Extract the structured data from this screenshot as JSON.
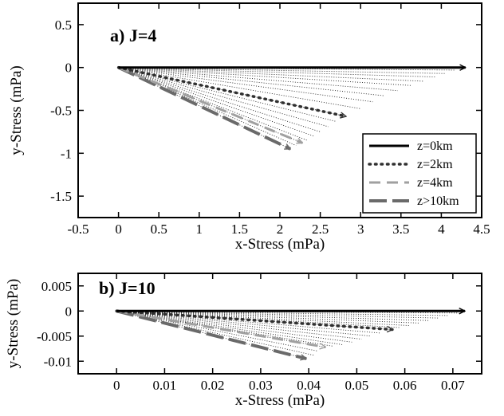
{
  "chart_data": [
    {
      "type": "line",
      "panel_label": "a) J=4",
      "xlabel": "x-Stress (mPa)",
      "ylabel": "y-Stress (mPa)",
      "xlim": [
        -0.5,
        4.5
      ],
      "ylim": [
        -1.75,
        0.75
      ],
      "xticks": [
        "-0.5",
        "0",
        "0.5",
        "1",
        "1.5",
        "2",
        "2.5",
        "3",
        "3.5",
        "4",
        "4.5"
      ],
      "xtick_values": [
        -0.5,
        0,
        0.5,
        1,
        1.5,
        2,
        2.5,
        3,
        3.5,
        4,
        4.5
      ],
      "yticks": [
        "0.5",
        "0",
        "-0.5",
        "-1",
        "-1.5"
      ],
      "ytick_values": [
        0.5,
        0,
        -0.5,
        -1,
        -1.5
      ],
      "grid": false,
      "legend_position": "bottom-right",
      "origin": [
        0,
        0
      ],
      "series": [
        {
          "name": "z=0km",
          "style": "solid",
          "color": "#000000",
          "end": [
            4.3,
            0.0
          ]
        },
        {
          "name": "z=2km",
          "style": "dotted",
          "color": "#303030",
          "end": [
            2.82,
            -0.57
          ]
        },
        {
          "name": "z=4km",
          "style": "dashed",
          "color": "#a0a0a0",
          "end": [
            2.28,
            -0.88
          ]
        },
        {
          "name": "z>10km",
          "style": "long-dashed",
          "color": "#6a6a6a",
          "end": [
            2.13,
            -0.95
          ]
        }
      ],
      "intermediate_vector_ends": [
        [
          4.18,
          -0.03
        ],
        [
          4.05,
          -0.07
        ],
        [
          3.92,
          -0.11
        ],
        [
          3.78,
          -0.16
        ],
        [
          3.63,
          -0.21
        ],
        [
          3.46,
          -0.27
        ],
        [
          3.3,
          -0.33
        ],
        [
          3.15,
          -0.4
        ],
        [
          3.0,
          -0.48
        ],
        [
          2.82,
          -0.57
        ],
        [
          2.7,
          -0.63
        ],
        [
          2.6,
          -0.69
        ],
        [
          2.5,
          -0.75
        ],
        [
          2.42,
          -0.8
        ],
        [
          2.34,
          -0.85
        ],
        [
          2.28,
          -0.88
        ],
        [
          2.2,
          -0.91
        ],
        [
          2.13,
          -0.95
        ]
      ]
    },
    {
      "type": "line",
      "panel_label": "b) J=10",
      "xlabel": "x-Stress (mPa)",
      "ylabel": "y-Stress (mPa)",
      "xlim": [
        -0.008,
        0.076
      ],
      "ylim": [
        -0.0125,
        0.0075
      ],
      "xticks": [
        "0",
        "0.01",
        "0.02",
        "0.03",
        "0.04",
        "0.05",
        "0.06",
        "0.07"
      ],
      "xtick_values": [
        0,
        0.01,
        0.02,
        0.03,
        0.04,
        0.05,
        0.06,
        0.07
      ],
      "yticks": [
        "0.005",
        "0",
        "-0.005",
        "-0.01"
      ],
      "ytick_values": [
        0.005,
        0,
        -0.005,
        -0.01
      ],
      "grid": false,
      "origin": [
        0,
        0
      ],
      "series": [
        {
          "name": "z=0km",
          "style": "solid",
          "color": "#000000",
          "end": [
            0.0725,
            0.0
          ]
        },
        {
          "name": "z=2km",
          "style": "dotted",
          "color": "#303030",
          "end": [
            0.0575,
            -0.0037
          ]
        },
        {
          "name": "z=4km",
          "style": "dashed",
          "color": "#a0a0a0",
          "end": [
            0.0435,
            -0.0072
          ]
        },
        {
          "name": "z>10km",
          "style": "long-dashed",
          "color": "#6a6a6a",
          "end": [
            0.0395,
            -0.0095
          ]
        }
      ],
      "intermediate_vector_ends": [
        [
          0.071,
          -0.0004
        ],
        [
          0.069,
          -0.0009
        ],
        [
          0.067,
          -0.0014
        ],
        [
          0.065,
          -0.0019
        ],
        [
          0.063,
          -0.0024
        ],
        [
          0.061,
          -0.0029
        ],
        [
          0.059,
          -0.0033
        ],
        [
          0.0575,
          -0.0037
        ],
        [
          0.055,
          -0.0044
        ],
        [
          0.053,
          -0.005
        ],
        [
          0.051,
          -0.0056
        ],
        [
          0.049,
          -0.0062
        ],
        [
          0.047,
          -0.0067
        ],
        [
          0.045,
          -0.007
        ],
        [
          0.0435,
          -0.0072
        ],
        [
          0.042,
          -0.008
        ],
        [
          0.041,
          -0.0088
        ],
        [
          0.0395,
          -0.0095
        ]
      ]
    }
  ]
}
